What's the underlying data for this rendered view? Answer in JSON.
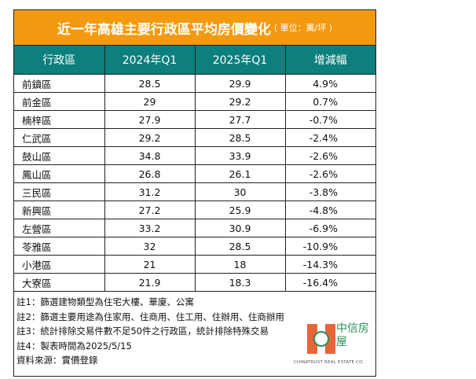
{
  "title": "近一年高雄主要行政區平均房價變化",
  "unit": "( 單位：萬/坪 )",
  "headers": [
    "行政區",
    "2024年Q1",
    "2025年Q1",
    "增減幅"
  ],
  "rows": [
    [
      "前鎮區",
      "28.5",
      "29.9",
      "4.9%"
    ],
    [
      "前金區",
      "29",
      "29.2",
      "0.7%"
    ],
    [
      "楠梓區",
      "27.9",
      "27.7",
      "-0.7%"
    ],
    [
      "仁武區",
      "29.2",
      "28.5",
      "-2.4%"
    ],
    [
      "鼓山區",
      "34.8",
      "33.9",
      "-2.6%"
    ],
    [
      "鳳山區",
      "26.8",
      "26.1",
      "-2.6%"
    ],
    [
      "三民區",
      "31.2",
      "30",
      "-3.8%"
    ],
    [
      "新興區",
      "27.2",
      "25.9",
      "-4.8%"
    ],
    [
      "左營區",
      "33.2",
      "30.9",
      "-6.9%"
    ],
    [
      "苓雅區",
      "32",
      "28.5",
      "-10.9%"
    ],
    [
      "小港區",
      "21",
      "18",
      "-14.3%"
    ],
    [
      "大寮區",
      "21.9",
      "18.3",
      "-16.4%"
    ]
  ],
  "notes": [
    "註1：篩選建物類型為住宅大樓、華廈、公寓",
    "註2：篩選主要用途為住家用、住商用、住工用、住辦用、住商辦用",
    "註3：統計排除交易件數不足50件之行政區，統計排除特殊交易",
    "註4：製表時間為2025/5/15",
    "資料來源：實價登錄"
  ],
  "logo": {
    "cn": "中信房屋",
    "en": "CHINATRUST REAL ESTATE CO."
  },
  "colors": {
    "title_bg": "#f49a10",
    "header_bg": "#0d7f7c",
    "logo_orange": "#e8653a",
    "logo_green": "#2a8f5a"
  }
}
